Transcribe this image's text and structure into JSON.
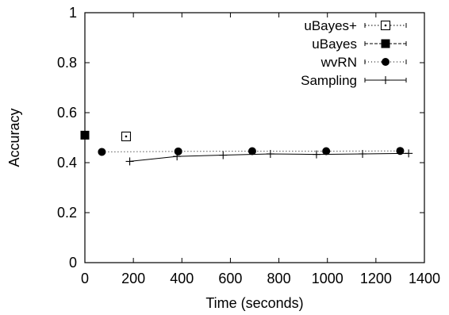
{
  "chart_data": {
    "type": "line",
    "xlabel": "Time (seconds)",
    "ylabel": "Accuracy",
    "xlim": [
      0,
      1400
    ],
    "ylim": [
      0,
      1
    ],
    "xticks": [
      0,
      200,
      400,
      600,
      800,
      1000,
      1200,
      1400
    ],
    "yticks": [
      0,
      0.2,
      0.4,
      0.6,
      0.8,
      1
    ],
    "xtick_labels": [
      "0",
      "200",
      "400",
      "600",
      "800",
      "1000",
      "1200",
      "1400"
    ],
    "ytick_labels": [
      "0",
      "0.2",
      "0.4",
      "0.6",
      "0.8",
      "1"
    ],
    "grid": false,
    "legend_position": "top-right",
    "series": [
      {
        "name": "uBayes+",
        "marker": "open-square-dot",
        "line_style": "dotted",
        "color": "#000000",
        "points": [
          [
            170,
            0.505
          ]
        ]
      },
      {
        "name": "uBayes",
        "marker": "filled-square",
        "line_style": "dashed",
        "color": "#000000",
        "points": [
          [
            0,
            0.51
          ]
        ]
      },
      {
        "name": "wvRN",
        "marker": "filled-circle",
        "line_style": "dash-dot",
        "color": "#000000",
        "points": [
          [
            70,
            0.443
          ],
          [
            385,
            0.445
          ],
          [
            690,
            0.446
          ],
          [
            995,
            0.446
          ],
          [
            1300,
            0.447
          ]
        ]
      },
      {
        "name": "Sampling",
        "marker": "plus",
        "line_style": "solid",
        "color": "#000000",
        "points": [
          [
            185,
            0.405
          ],
          [
            380,
            0.425
          ],
          [
            570,
            0.43
          ],
          [
            765,
            0.435
          ],
          [
            955,
            0.433
          ],
          [
            1145,
            0.435
          ],
          [
            1335,
            0.437
          ]
        ]
      }
    ]
  }
}
